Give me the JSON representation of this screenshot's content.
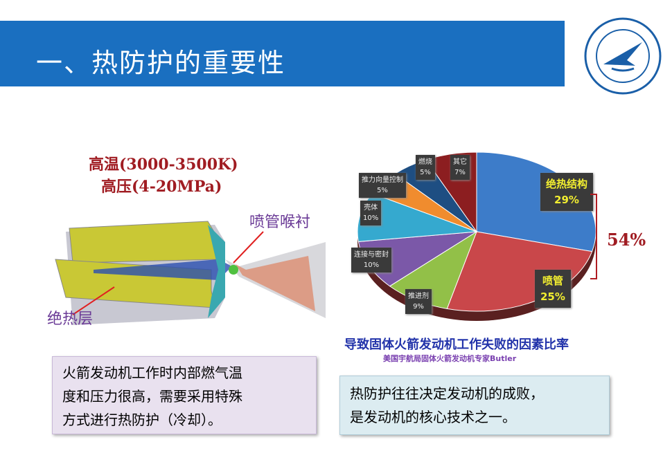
{
  "header": {
    "title": "一、热防护的重要性"
  },
  "logo": {
    "text": "NORTHWESTERN POLYTECHNICAL UNIVERSITY 西北工業大學 1938"
  },
  "rocket": {
    "temp": "高温(3000-3500K)",
    "pressure": "高压(4-20MPa)",
    "nozzle_label": "喷管喉衬",
    "insulation_label": "绝热层"
  },
  "pie": {
    "title": "导致固体火箭发动机工作失败的因素比率",
    "subtitle": "美国宇航局固体火箭发动机专家Butler",
    "bracket_total": "54%"
  },
  "chart_data": {
    "type": "pie",
    "title": "导致固体火箭发动机工作失败的因素比率",
    "slices": [
      {
        "name": "绝热结构",
        "value": 29,
        "label": "29%",
        "color": "#3d7cc9"
      },
      {
        "name": "喷管",
        "value": 25,
        "label": "25%",
        "color": "#c9474a"
      },
      {
        "name": "推进剂",
        "value": 9,
        "label": "9%",
        "color": "#92c048"
      },
      {
        "name": "连接与密封",
        "value": 10,
        "label": "10%",
        "color": "#7b58a8"
      },
      {
        "name": "壳体",
        "value": 10,
        "label": "10%",
        "color": "#35a9cf"
      },
      {
        "name": "推力向量控制",
        "value": 5,
        "label": "5%",
        "color": "#f08c2e"
      },
      {
        "name": "燃烧",
        "value": 5,
        "label": "5%",
        "color": "#1e4e82"
      },
      {
        "name": "其它",
        "value": 7,
        "label": "7%",
        "color": "#8c1e20"
      }
    ]
  },
  "left_box": {
    "lines": [
      "火箭发动机工作时内部燃气温",
      "度和压力很高，需要采用特殊",
      "方式进行热防护（冷却）。"
    ]
  },
  "right_box": {
    "lines": [
      "热防护往往决定发动机的成败，",
      "是发动机的核心技术之一。"
    ]
  }
}
